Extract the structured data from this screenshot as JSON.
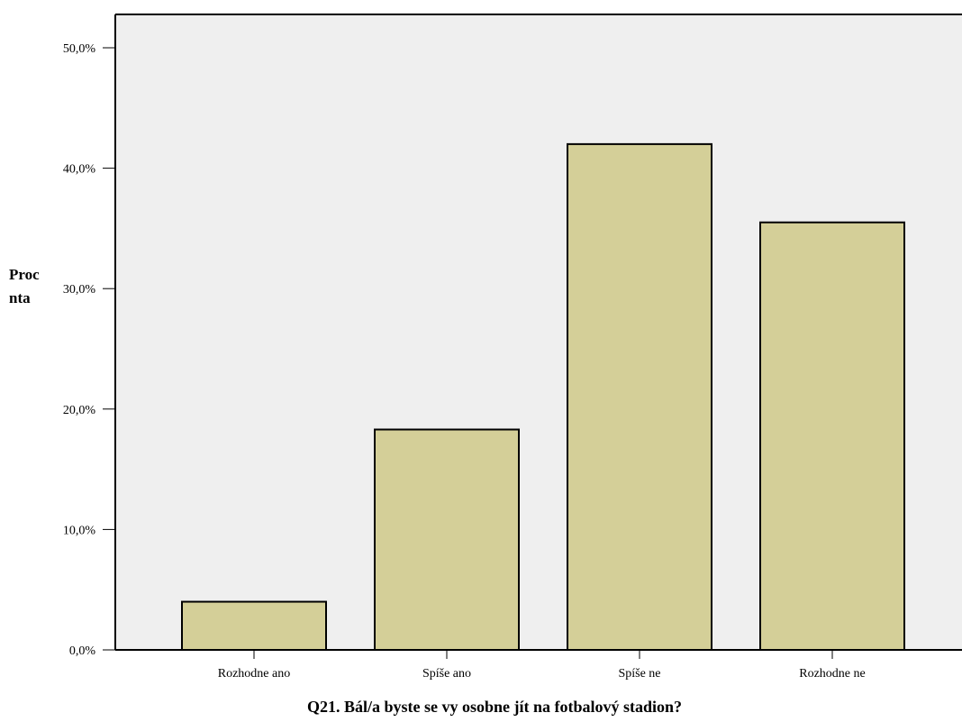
{
  "chart_data": {
    "type": "bar",
    "categories": [
      "Rozhodne ano",
      "Spíše ano",
      "Spíše ne",
      "Rozhodne ne"
    ],
    "values": [
      4.0,
      18.3,
      42.0,
      35.5
    ],
    "xlabel": "Q21. Bál/a byste se vy osobne jít na fotbalový stadion?",
    "ylabel": "Procnta",
    "ylim": [
      0,
      50
    ],
    "yticks": [
      0,
      10,
      20,
      30,
      40,
      50
    ],
    "ytick_labels": [
      "0,0%",
      "10,0%",
      "20,0%",
      "30,0%",
      "40,0%",
      "50,0%"
    ],
    "grid": false,
    "colors": {
      "bar_fill": "#d4cf98",
      "bar_stroke": "#000000",
      "plot_bg": "#efefef"
    }
  }
}
